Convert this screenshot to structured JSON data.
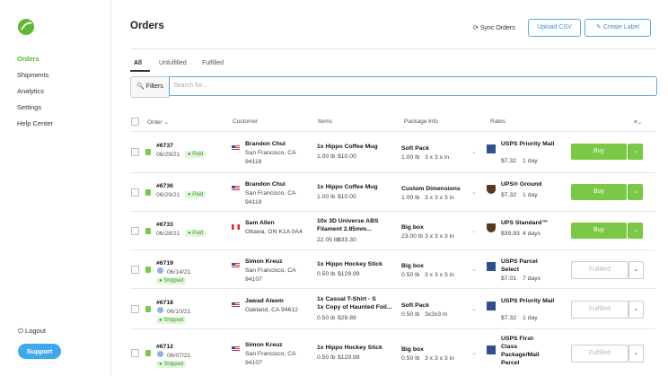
{
  "sidebar": {
    "nav": [
      "Orders",
      "Shipments",
      "Analytics",
      "Settings",
      "Help Center"
    ],
    "logout": "Logout",
    "support": "Support"
  },
  "header": {
    "title": "Orders",
    "sync": "Sync Orders",
    "upload": "Upload CSV",
    "create": "Create Label"
  },
  "tabs": [
    "All",
    "Unfulfilled",
    "Fulfilled"
  ],
  "filter": {
    "button": "Filters",
    "placeholder": "Search for..."
  },
  "table": {
    "columns": [
      "Order",
      "Customer",
      "Items",
      "Package Info",
      "Rates"
    ],
    "rows": [
      {
        "order": "#6737",
        "date": "06/29/21",
        "status": "Paid",
        "name": "Brandon Chui",
        "address": [
          "San Francisco, CA",
          "94118"
        ],
        "items": [
          "1x Hippo Coffee Mug"
        ],
        "weight": "1.00 lb",
        "price": "$10.00",
        "package": "Soft Pack",
        "pkg_weight": "1.00 lb",
        "dims": "3 x 3 x in",
        "service": "USPS Priority Mail",
        "cost": "$7.32",
        "eta": "1 day",
        "action": "Buy"
      },
      {
        "order": "#6736",
        "date": "06/29/21",
        "status": "Paid",
        "name": "Brandon Chui",
        "address": [
          "San Francisco, CA",
          "94118"
        ],
        "items": [
          "1x Hippo Coffee Mug"
        ],
        "weight": "1.00 lb",
        "price": "$10.00",
        "package": "Custom Dimensions",
        "pkg_weight": "1.00 lb",
        "dims": "3 x 3 x 3 in",
        "service": "UPS® Ground",
        "cost": "$7.32",
        "eta": "1 day",
        "action": "Buy"
      },
      {
        "order": "#6733",
        "date": "06/28/21",
        "status": "Paid",
        "name": "Sam Allen",
        "address": [
          "Ottawa, ON K1A 0A4"
        ],
        "items": [
          "10x 3D Universe ABS",
          "Filament 2.85mm..."
        ],
        "weight": "22.05 lb",
        "price": "$33.30",
        "package": "Big box",
        "pkg_weight": "23.00 lb",
        "dims": "3 x 3 x 3 in",
        "service": "UPS Standard™",
        "cost": "$39.83",
        "eta": "4 days",
        "action": "Buy"
      },
      {
        "order": "#6719",
        "date": "06/14/21",
        "status": "Shipped",
        "name": "Simon Kreuz",
        "address": [
          "San Francisco, CA",
          "94107"
        ],
        "items": [
          "1x Hippo Hockey Stick"
        ],
        "weight": "0.50 lb",
        "price": "$129.99",
        "package": "Big box",
        "pkg_weight": "0.50 lb",
        "dims": "3 x 3 x 3 in",
        "service": "USPS Parcel Select",
        "cost": "$7.01",
        "eta": "7 days",
        "action": "Fulfilled"
      },
      {
        "order": "#6718",
        "date": "06/10/21",
        "status": "Shipped",
        "name": "Jawad Aleem",
        "address": [
          "Oakland, CA 94612"
        ],
        "items": [
          "1x Casual T-Shirt - S",
          "1x Copy of Haunted Foil..."
        ],
        "weight": "0.50 lb",
        "price": "$29.89",
        "package": "Soft Pack",
        "pkg_weight": "0.50 lb",
        "dims": "3x3x3 in",
        "service": "USPS Priority Mail",
        "cost": "$7.32",
        "eta": "1 day",
        "action": "Fulfilled"
      },
      {
        "order": "#6712",
        "date": "06/07/21",
        "status": "Shipped",
        "name": "Simon Kreuz",
        "address": [
          "San Francisco, CA",
          "94107"
        ],
        "items": [
          "1x Hippo Hockey Stick"
        ],
        "weight": "0.50 lb",
        "price": "$129.99",
        "package": "Big box",
        "pkg_weight": "0.50 lb",
        "dims": "3 x 3 x 3 in",
        "service": "USPS First-Class Package/Mail Parcel",
        "cost": null,
        "eta": null,
        "action": "Fulfilled"
      }
    ]
  }
}
